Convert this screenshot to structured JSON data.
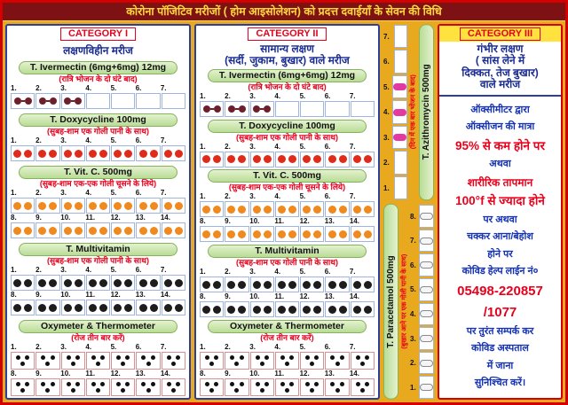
{
  "header": {
    "title": "कोरोना पॉजिटिव मरीजों ( होम आइसोलेशन) को प्रदत्त दवाईयाँ के सेवन की विधि"
  },
  "colors": {
    "header_bg": "#7d1113",
    "header_text": "#ffd83d",
    "page_bg": "#e9a91f",
    "panel_border_blue": "#2c3e9e",
    "panel_border_red": "#d40000",
    "category_label_red": "#e8001c",
    "hindi_heading_blue": "#1b2d93",
    "band_green": "#b9dc96",
    "pill_ivermectin": "#6e1f2e",
    "pill_doxycycline": "#e02a1a",
    "pill_vitc": "#f0891e",
    "pill_multivitamin": "#1d1d1d",
    "pill_azithromycin": "#e23aa2",
    "pill_paracetamol": "#f5f5f5",
    "dice_dot": "#111111"
  },
  "categories": [
    {
      "label": "CATEGORY I",
      "heading_lines": [
        "लक्षणविहीन मरीज"
      ]
    },
    {
      "label": "CATEGORY II",
      "heading_lines": [
        "सामान्य लक्षण",
        "(सर्दी, जुकाम, बुखार) वाले मरीज"
      ]
    }
  ],
  "medicine_sections": [
    {
      "name": "T. Ivermectin (6mg+6mg) 12mg",
      "instruction": "(रात्रि भोजन के दो घंटे बाद)",
      "pill": "ivermectin",
      "rows": [
        {
          "days": [
            "1.",
            "2.",
            "3.",
            "4.",
            "5.",
            "6.",
            "7."
          ],
          "filled": [
            1,
            1,
            1,
            0,
            0,
            0,
            0
          ]
        }
      ]
    },
    {
      "name": "T. Doxycycline 100mg",
      "instruction": "(सुबह-शाम एक गोली पानी के साथ)",
      "pill": "doxycycline",
      "rows": [
        {
          "days": [
            "1.",
            "2.",
            "3.",
            "4.",
            "5.",
            "6.",
            "7."
          ],
          "filled": [
            1,
            1,
            1,
            1,
            1,
            1,
            1
          ]
        }
      ]
    },
    {
      "name": "T. Vit. C. 500mg",
      "instruction": "(सुबह-शाम एक-एक गोली चूसने के लिये)",
      "pill": "vitc",
      "rows": [
        {
          "days": [
            "1.",
            "2.",
            "3.",
            "4.",
            "5.",
            "6.",
            "7."
          ],
          "filled": [
            1,
            1,
            1,
            1,
            1,
            1,
            1
          ]
        },
        {
          "days": [
            "8.",
            "9.",
            "10.",
            "11.",
            "12.",
            "13.",
            "14."
          ],
          "filled": [
            1,
            1,
            1,
            1,
            1,
            1,
            1
          ]
        }
      ]
    },
    {
      "name": "T. Multivitamin",
      "instruction": "(सुबह-शाम एक गोली पानी के साथ)",
      "pill": "multivitamin",
      "rows": [
        {
          "days": [
            "1.",
            "2.",
            "3.",
            "4.",
            "5.",
            "6.",
            "7."
          ],
          "filled": [
            1,
            1,
            1,
            1,
            1,
            1,
            1
          ]
        },
        {
          "days": [
            "8.",
            "9.",
            "10.",
            "11.",
            "12.",
            "13.",
            "14."
          ],
          "filled": [
            1,
            1,
            1,
            1,
            1,
            1,
            1
          ]
        }
      ]
    },
    {
      "name": "Oxymeter & Thermometer",
      "instruction": "(रोज तीन बार करें)",
      "pill": "dice3",
      "rows": [
        {
          "days": [
            "1.",
            "2.",
            "3.",
            "4.",
            "5.",
            "6.",
            "7."
          ],
          "filled": [
            1,
            1,
            1,
            1,
            1,
            1,
            1
          ]
        },
        {
          "days": [
            "8.",
            "9.",
            "10.",
            "11.",
            "12.",
            "13.",
            "14."
          ],
          "filled": [
            1,
            1,
            1,
            1,
            1,
            1,
            1
          ]
        }
      ]
    }
  ],
  "strips": [
    {
      "name": "T. Azithromycin 500mg",
      "instruction": "(दिन में एक बार भोजन के बाद)",
      "pill": "azithromycin",
      "days": [
        "7.",
        "6.",
        "5.",
        "4.",
        "3.",
        "2.",
        "1."
      ],
      "filled": [
        0,
        0,
        1,
        1,
        1,
        0,
        0
      ],
      "boxes_side": "left"
    },
    {
      "name": "T. Paracetamol 500mg",
      "instruction": "(बुखार आने पर एक गोली पानी के साथ)",
      "pill": "paracetamol",
      "days": [
        "8.",
        "7.",
        "6.",
        "5.",
        "4.",
        "3.",
        "2.",
        "1."
      ],
      "filled": [
        1,
        1,
        1,
        1,
        1,
        1,
        1,
        1
      ],
      "boxes_side": "right"
    }
  ],
  "category3": {
    "label": "CATEGORY III",
    "heading_lines": [
      "गंभीर लक्षण",
      "( सांस लेने में",
      "दिक्कत, तेज बुखार)",
      "वाले मरीज"
    ],
    "body_lines": [
      {
        "text": "ऑक्सीमीटर द्वारा",
        "style": "blue"
      },
      {
        "text": "ऑक्सीजन की मात्रा",
        "style": "blue"
      },
      {
        "text": "95% से कम होने पर",
        "style": "red-big"
      },
      {
        "text": "अथवा",
        "style": "blue"
      },
      {
        "text": "शारीरिक तापमान",
        "style": "red"
      },
      {
        "text": "100°f से ज्यादा होने",
        "style": "red-big"
      },
      {
        "text": "पर अथवा",
        "style": "blue"
      },
      {
        "text": "चक्कर आना/बेहोश",
        "style": "blue"
      },
      {
        "text": "होने पर",
        "style": "blue"
      },
      {
        "text": "कोविड हेल्प लाईन नं०",
        "style": "blue"
      },
      {
        "text": "05498-220857",
        "style": "phone"
      },
      {
        "text": "/1077",
        "style": "phone"
      },
      {
        "text": "पर तुरंत सम्पर्क कर",
        "style": "blue"
      },
      {
        "text": "कोविड अस्पताल",
        "style": "blue"
      },
      {
        "text": "में जाना",
        "style": "blue"
      },
      {
        "text": "सुनिश्चित करें।",
        "style": "blue"
      }
    ]
  }
}
